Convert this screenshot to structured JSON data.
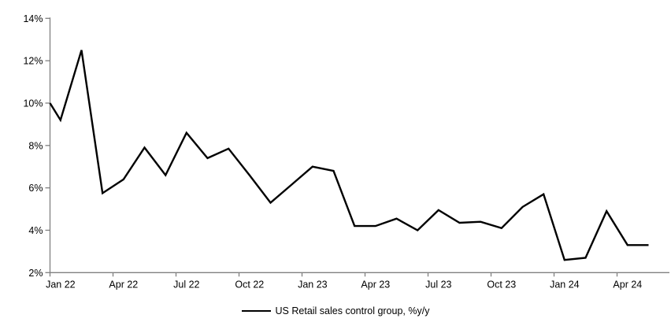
{
  "chart_data": {
    "type": "line",
    "title": "",
    "legend": {
      "position": "bottom-center",
      "label": "US Retail sales control group, %y/y"
    },
    "categories": [
      "Jan 22",
      "Feb 22",
      "Mar 22",
      "Apr 22",
      "May 22",
      "Jun 22",
      "Jul 22",
      "Aug 22",
      "Sep 22",
      "Oct 22",
      "Nov 22",
      "Dec 22",
      "Jan 23",
      "Feb 23",
      "Mar 23",
      "Apr 23",
      "May 23",
      "Jun 23",
      "Jul 23",
      "Aug 23",
      "Sep 23",
      "Oct 23",
      "Nov 23",
      "Dec 23",
      "Jan 24",
      "Feb 24",
      "Mar 24",
      "Apr 24",
      "May 24"
    ],
    "series": [
      {
        "name": "US Retail sales control group, %y/y",
        "values": [
          9.2,
          12.5,
          5.75,
          6.4,
          7.9,
          6.6,
          8.6,
          7.4,
          7.85,
          6.6,
          5.3,
          6.15,
          7.0,
          6.8,
          4.2,
          4.2,
          4.55,
          4.0,
          4.95,
          4.35,
          4.4,
          4.1,
          5.1,
          5.7,
          2.6,
          2.7,
          4.9,
          3.3,
          3.3
        ],
        "axis_edge_lead_in_value": 10.0
      }
    ],
    "x_tick_labels": [
      "Jan 22",
      "Apr 22",
      "Jul 22",
      "Oct 22",
      "Jan 23",
      "Apr 23",
      "Jul 23",
      "Oct 23",
      "Jan 24",
      "Apr 24"
    ],
    "x_tick_every_n_months": 3,
    "y_tick_labels": [
      "2%",
      "4%",
      "6%",
      "8%",
      "10%",
      "12%",
      "14%"
    ],
    "y_tick_values": [
      2,
      4,
      6,
      8,
      10,
      12,
      14
    ],
    "ylim": [
      2,
      14
    ],
    "grid": "off",
    "colors": {
      "line": "#000000",
      "axis": "#808080",
      "text": "#000000",
      "background": "#ffffff"
    }
  }
}
